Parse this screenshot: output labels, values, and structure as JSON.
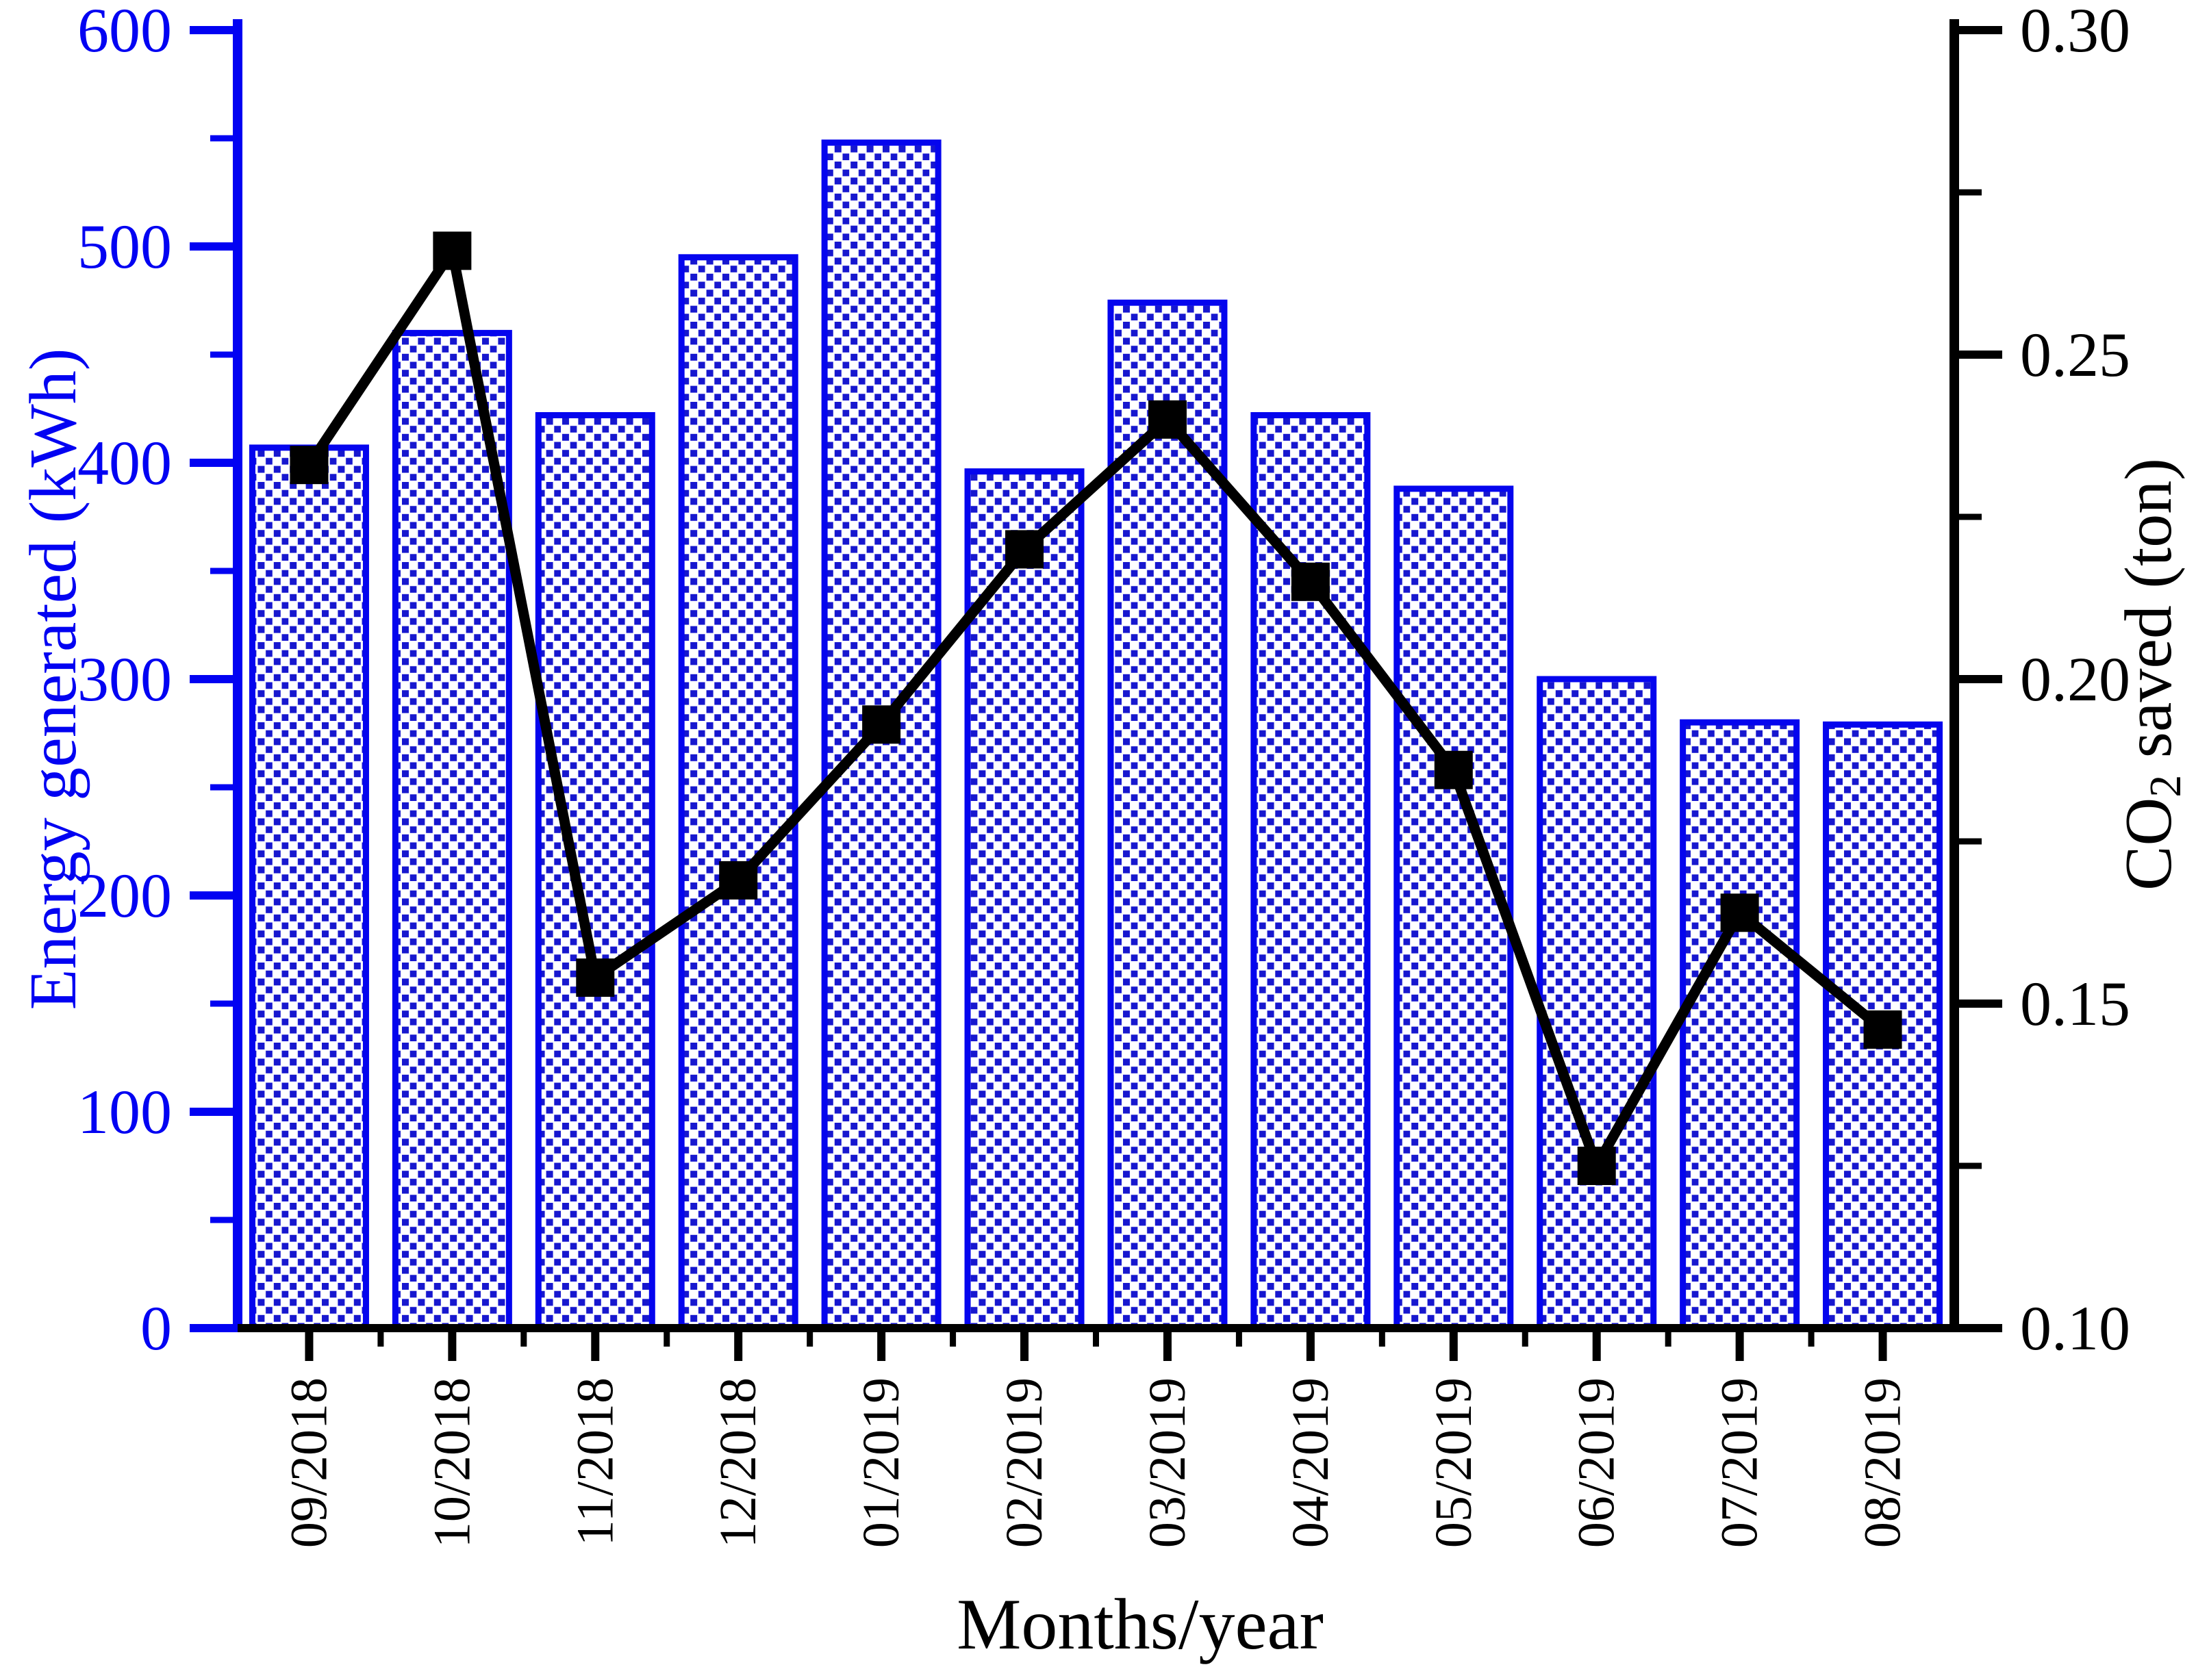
{
  "chart_data": {
    "type": "bar+line-dual-axis",
    "title": "",
    "xlabel": "Months/year",
    "ylabel": "Energy generated (kWh)",
    "y2label": "CO2 saved (ton)",
    "y2label_parts": {
      "pre": "CO",
      "sub": "2",
      "post": " saved (ton)"
    },
    "categories": [
      "09/2018",
      "10/2018",
      "11/2018",
      "12/2018",
      "01/2019",
      "02/2019",
      "03/2019",
      "04/2019",
      "05/2019",
      "06/2019",
      "07/2019",
      "08/2019"
    ],
    "series": [
      {
        "name": "Energy generated (kWh)",
        "type": "bar",
        "axis": "left",
        "values": [
          407,
          460,
          422,
          495,
          548,
          396,
          474,
          422,
          388,
          300,
          280,
          279
        ]
      },
      {
        "name": "CO2 saved (ton)",
        "type": "line",
        "axis": "right",
        "marker": "square",
        "values": [
          0.233,
          0.266,
          0.154,
          0.169,
          0.193,
          0.22,
          0.24,
          0.215,
          0.186,
          0.125,
          0.164,
          0.146
        ]
      }
    ],
    "ylim": [
      0,
      600
    ],
    "y2lim": [
      0.1,
      0.3
    ],
    "y_ticks": [
      "0",
      "100",
      "200",
      "300",
      "400",
      "500",
      "600"
    ],
    "y_minor_ticks": [
      50,
      150,
      250,
      350,
      450,
      550
    ],
    "y2_ticks": [
      "0.10",
      "0.15",
      "0.20",
      "0.25",
      "0.30"
    ],
    "y2_minor_ticks": [
      0.125,
      0.175,
      0.225,
      0.275
    ],
    "grid": false,
    "legend": "none",
    "colors": {
      "axis_left": "#0202f2",
      "axis_left_text": "#0202f2",
      "axis_right": "#000000",
      "bar_border": "#0505ee",
      "bar_dot": "#1717cf",
      "bar_fill_bg": "#ffffff",
      "line": "#000000",
      "background": "#ffffff",
      "text": "#000000"
    }
  }
}
